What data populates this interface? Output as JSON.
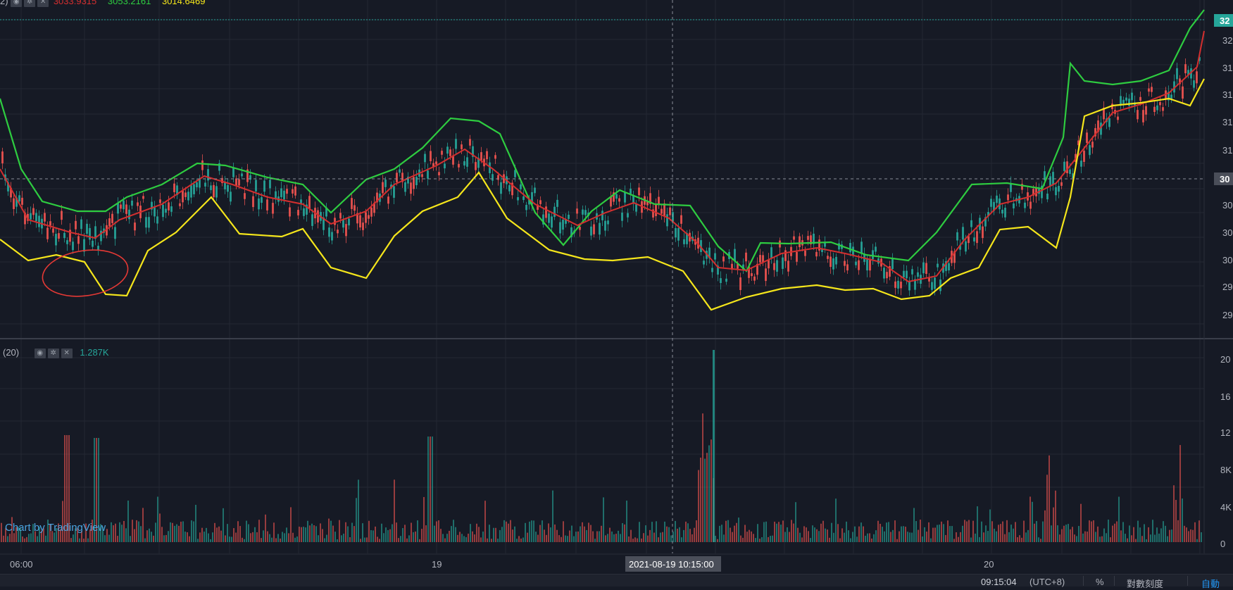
{
  "legend": {
    "main": {
      "prefix": "2)",
      "values": [
        "3033.9315",
        "3053.2161",
        "3014.6469"
      ],
      "colors": [
        "#d32f2f",
        "#2ecc40",
        "#f5e61b"
      ]
    },
    "volume": {
      "label": "(20)",
      "value": "1.287K",
      "value_color": "#26a69a"
    }
  },
  "watermark": "Chart by TradingView",
  "price_axis": {
    "labels": [
      "32",
      "32",
      "31",
      "31",
      "31",
      "31",
      "30",
      "30",
      "30",
      "30",
      "29",
      "29"
    ],
    "current_price": "32",
    "crosshair_price": "30"
  },
  "volume_axis": {
    "labels": [
      "20",
      "16",
      "12",
      "8K",
      "4K",
      "0"
    ]
  },
  "time_axis": {
    "labels": [
      "06:00",
      "19",
      "20"
    ],
    "crosshair_time": "2021-08-19 10:15:00"
  },
  "bottom_bar": {
    "clock": "09:15:04",
    "tz": "(UTC+8)",
    "percent": "%",
    "log": "對數刻度",
    "auto": "自動"
  },
  "colors": {
    "background": "#161a25",
    "up": "#26a69a",
    "down": "#ef5350",
    "upper_band": "#2ecc40",
    "middle_band": "#d32f2f",
    "lower_band": "#f5e61b",
    "annotation": "#e53935"
  },
  "chart_data": {
    "type": "candlestick",
    "series": [
      {
        "name": "3033.9315",
        "role": "middle band"
      },
      {
        "name": "3053.2161",
        "role": "upper band"
      },
      {
        "name": "3014.6469",
        "role": "lower band"
      }
    ],
    "price_ylim_hint": "29 to 32",
    "volume_max_label": "20"
  }
}
